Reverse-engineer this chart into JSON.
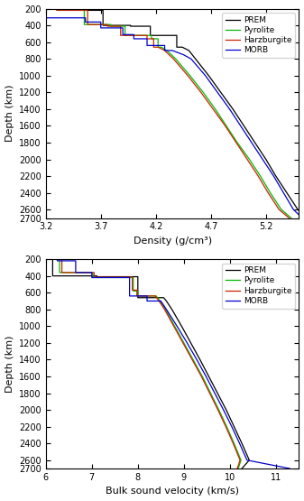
{
  "fig_width": 3.37,
  "fig_height": 5.55,
  "dpi": 100,
  "depth_min": 200,
  "depth_max": 2700,
  "density": {
    "xlabel": "Density (g/cm³)",
    "xlim": [
      3.2,
      5.5
    ],
    "xticks": [
      3.2,
      3.7,
      4.2,
      4.7,
      5.2
    ],
    "PREM": {
      "color": "#000000",
      "label": "PREM",
      "depth": [
        200,
        220,
        220,
        400,
        400,
        410,
        410,
        520,
        520,
        660,
        660,
        700,
        800,
        1000,
        1200,
        1400,
        1600,
        1800,
        2000,
        2200,
        2400,
        2600,
        2700
      ],
      "val": [
        3.54,
        3.54,
        3.72,
        3.72,
        3.97,
        3.97,
        4.15,
        4.15,
        4.39,
        4.39,
        4.44,
        4.5,
        4.56,
        4.68,
        4.79,
        4.9,
        5.0,
        5.1,
        5.2,
        5.29,
        5.39,
        5.49,
        5.57
      ]
    },
    "Pyrolite": {
      "color": "#00bb00",
      "label": "Pyrolite",
      "depth": [
        200,
        220,
        220,
        390,
        390,
        410,
        410,
        520,
        520,
        560,
        560,
        660,
        660,
        700,
        800,
        1000,
        1200,
        1400,
        1600,
        1800,
        2000,
        2200,
        2400,
        2600,
        2700
      ],
      "val": [
        3.3,
        3.3,
        3.55,
        3.55,
        3.79,
        3.79,
        3.92,
        3.92,
        4.16,
        4.16,
        4.22,
        4.22,
        4.25,
        4.3,
        4.38,
        4.51,
        4.63,
        4.74,
        4.84,
        4.94,
        5.05,
        5.15,
        5.24,
        5.34,
        5.43
      ]
    },
    "Harzburgite": {
      "color": "#cc2200",
      "label": "Harzburgite",
      "depth": [
        200,
        220,
        220,
        390,
        390,
        410,
        410,
        520,
        520,
        560,
        560,
        660,
        660,
        700,
        800,
        1000,
        1200,
        1400,
        1600,
        1800,
        2000,
        2200,
        2400,
        2600,
        2700
      ],
      "val": [
        3.3,
        3.3,
        3.58,
        3.58,
        3.76,
        3.76,
        3.88,
        3.88,
        4.12,
        4.12,
        4.18,
        4.18,
        4.22,
        4.28,
        4.36,
        4.49,
        4.61,
        4.72,
        4.83,
        4.93,
        5.03,
        5.13,
        5.22,
        5.32,
        5.41
      ]
    },
    "MORB": {
      "color": "#0000cc",
      "label": "MORB",
      "depth": [
        200,
        310,
        310,
        360,
        360,
        430,
        430,
        510,
        510,
        560,
        560,
        640,
        640,
        700,
        700,
        750,
        800,
        1000,
        1200,
        1400,
        1600,
        1800,
        2000,
        2200,
        2400,
        2600,
        2700
      ],
      "val": [
        3.2,
        3.2,
        3.56,
        3.56,
        3.7,
        3.7,
        3.9,
        3.9,
        4.0,
        4.0,
        4.12,
        4.12,
        4.28,
        4.28,
        4.35,
        4.45,
        4.52,
        4.65,
        4.76,
        4.87,
        4.97,
        5.07,
        5.17,
        5.27,
        5.36,
        5.45,
        5.53
      ]
    }
  },
  "velocity": {
    "xlabel": "Bulk sound velocity (km/s)",
    "xlim": [
      6.0,
      11.5
    ],
    "xticks": [
      6,
      7,
      8,
      9,
      10,
      11
    ],
    "PREM": {
      "color": "#000000",
      "label": "PREM",
      "depth": [
        200,
        400,
        400,
        410,
        410,
        660,
        660,
        700,
        800,
        1000,
        1200,
        1400,
        1600,
        1800,
        2000,
        2200,
        2400,
        2600,
        2700
      ],
      "val": [
        6.15,
        6.15,
        7.11,
        7.11,
        8.0,
        8.0,
        8.56,
        8.62,
        8.74,
        8.95,
        9.15,
        9.35,
        9.54,
        9.73,
        9.92,
        10.09,
        10.26,
        10.42,
        10.26
      ]
    },
    "Pyrolite": {
      "color": "#00bb00",
      "label": "Pyrolite",
      "depth": [
        200,
        360,
        360,
        420,
        420,
        580,
        580,
        640,
        640,
        700,
        800,
        1000,
        1200,
        1400,
        1600,
        1800,
        2000,
        2200,
        2400,
        2600,
        2700
      ],
      "val": [
        6.3,
        6.3,
        7.02,
        7.02,
        7.9,
        7.9,
        8.0,
        8.0,
        8.4,
        8.48,
        8.6,
        8.8,
        9.0,
        9.2,
        9.4,
        9.58,
        9.76,
        9.93,
        10.09,
        10.24,
        10.18
      ]
    },
    "Harzburgite": {
      "color": "#cc2200",
      "label": "Harzburgite",
      "depth": [
        200,
        360,
        360,
        415,
        415,
        570,
        570,
        640,
        640,
        700,
        800,
        1000,
        1200,
        1400,
        1600,
        1800,
        2000,
        2200,
        2400,
        2600,
        2700
      ],
      "val": [
        6.35,
        6.35,
        7.05,
        7.05,
        7.88,
        7.88,
        7.98,
        7.98,
        8.38,
        8.46,
        8.58,
        8.78,
        8.98,
        9.18,
        9.38,
        9.56,
        9.74,
        9.91,
        10.07,
        10.22,
        10.16
      ]
    },
    "MORB": {
      "color": "#0000cc",
      "label": "MORB",
      "depth": [
        200,
        220,
        220,
        360,
        360,
        420,
        420,
        640,
        640,
        700,
        700,
        800,
        1000,
        1200,
        1400,
        1600,
        1800,
        2000,
        2200,
        2400,
        2600,
        2700
      ],
      "val": [
        6.25,
        6.25,
        6.65,
        6.65,
        7.0,
        7.0,
        7.82,
        7.82,
        8.2,
        8.2,
        8.5,
        8.62,
        8.85,
        9.07,
        9.28,
        9.48,
        9.67,
        9.86,
        10.04,
        10.21,
        10.37,
        11.3
      ]
    }
  },
  "yticks": [
    200,
    400,
    600,
    800,
    1000,
    1200,
    1400,
    1600,
    1800,
    2000,
    2200,
    2400,
    2600,
    2700
  ],
  "ytick_labels": [
    "200",
    "400",
    "600",
    "800",
    "1000",
    "1200",
    "1400",
    "1600",
    "1800",
    "2000",
    "2200",
    "2400",
    "2600",
    "2700"
  ],
  "ylabel": "Depth (km)"
}
